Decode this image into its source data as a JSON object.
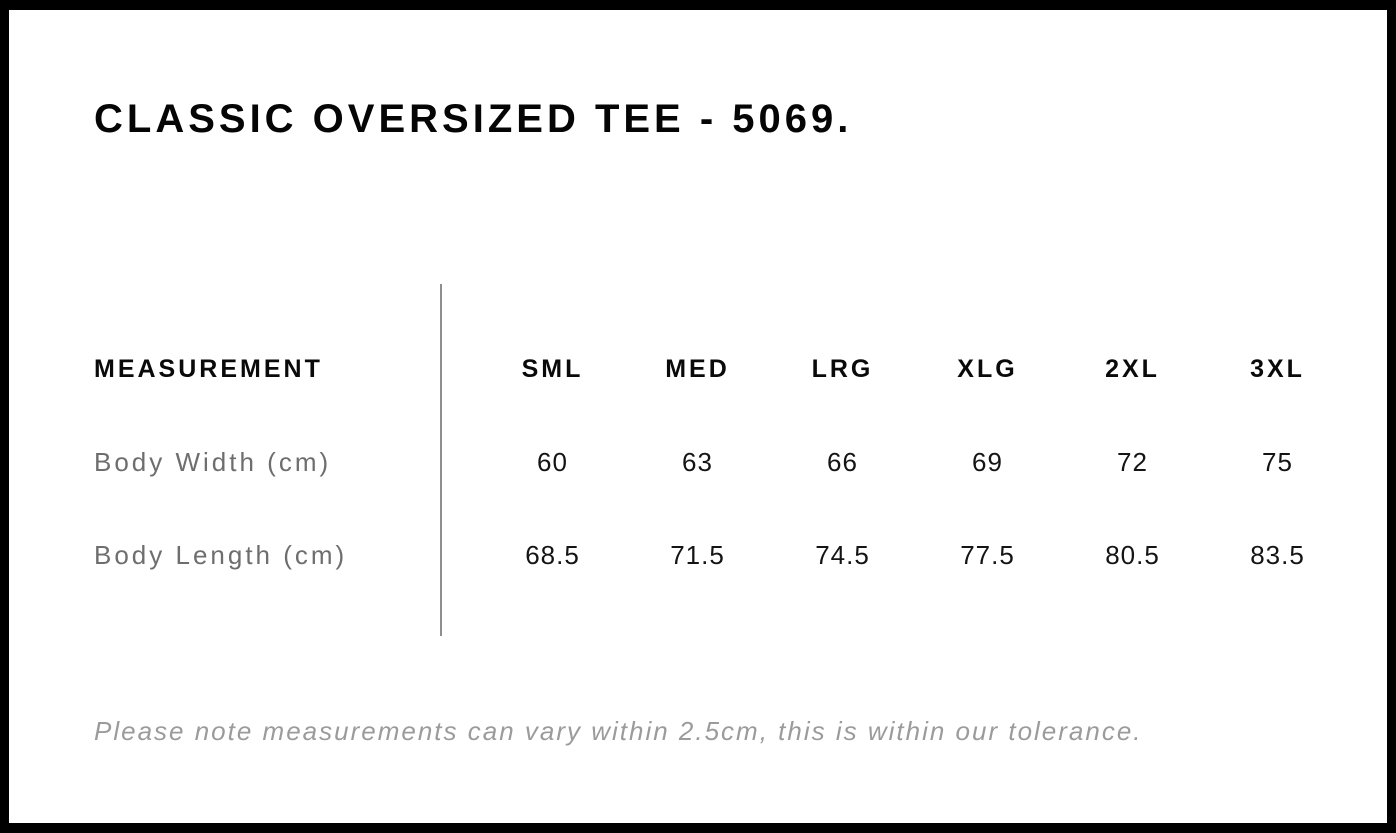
{
  "page": {
    "title": "CLASSIC OVERSIZED TEE - 5069.",
    "footer_note": "Please note measurements can vary within 2.5cm, this is within our tolerance."
  },
  "size_chart": {
    "measurement_header": "MEASUREMENT",
    "sizes": [
      "SML",
      "MED",
      "LRG",
      "XLG",
      "2XL",
      "3XL"
    ],
    "rows": [
      {
        "label": "Body Width (cm)",
        "values": [
          "60",
          "63",
          "66",
          "69",
          "72",
          "75"
        ]
      },
      {
        "label": "Body Length (cm)",
        "values": [
          "68.5",
          "71.5",
          "74.5",
          "77.5",
          "80.5",
          "83.5"
        ]
      }
    ]
  },
  "chart_data": {
    "type": "table",
    "title": "CLASSIC OVERSIZED TEE - 5069.",
    "columns": [
      "MEASUREMENT",
      "SML",
      "MED",
      "LRG",
      "XLG",
      "2XL",
      "3XL"
    ],
    "rows": [
      {
        "label": "Body Width (cm)",
        "values": [
          60,
          63,
          66,
          69,
          72,
          75
        ]
      },
      {
        "label": "Body Length (cm)",
        "values": [
          68.5,
          71.5,
          74.5,
          77.5,
          80.5,
          83.5
        ]
      }
    ],
    "note": "Please note measurements can vary within 2.5cm, this is within our tolerance.",
    "layout": {
      "divider_between_label_and_values": true,
      "grid": "off"
    }
  },
  "colors": {
    "background": "#ffffff",
    "frame": "#000000",
    "title_text": "#050505",
    "header_text": "#0a0a0a",
    "label_text": "#6e6e6e",
    "value_text": "#141414",
    "footer_text": "#9b9b9b",
    "divider": "#8f8f8f"
  }
}
